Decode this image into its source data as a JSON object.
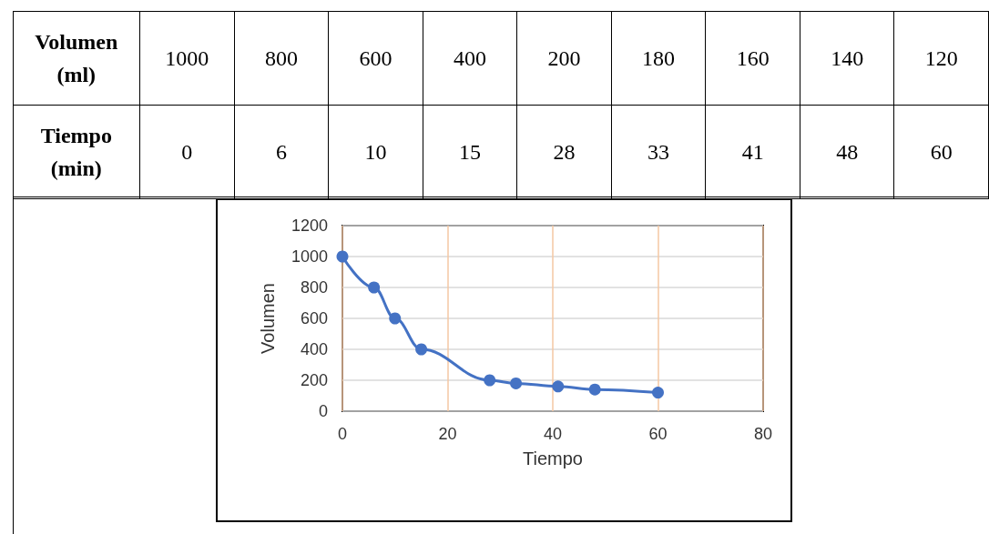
{
  "chart_data": {
    "type": "line",
    "xlabel": "Tiempo",
    "ylabel": "Volumen",
    "annotations": [
      "Volumen (ml)",
      "1000",
      "800",
      "600",
      "400",
      "200",
      "180",
      "160",
      "140",
      "120",
      "Tiempo (min)",
      "0",
      "6",
      "10",
      "15",
      "28",
      "33",
      "41",
      "48",
      "60"
    ],
    "x": [
      0,
      6,
      10,
      15,
      28,
      33,
      41,
      48,
      60
    ],
    "series": [
      {
        "color": "#4472c4",
        "values": [
          1000,
          800,
          600,
          400,
          200,
          180,
          160,
          140,
          120
        ]
      }
    ],
    "xlim": [
      0,
      80
    ],
    "xticks": [
      0,
      20,
      40,
      60,
      80
    ],
    "ylim": [
      0,
      1200
    ],
    "yticks": [
      0,
      200,
      400,
      600,
      800,
      1000,
      1200
    ],
    "grid": true,
    "marker": "circle",
    "line_style": "solid"
  }
}
